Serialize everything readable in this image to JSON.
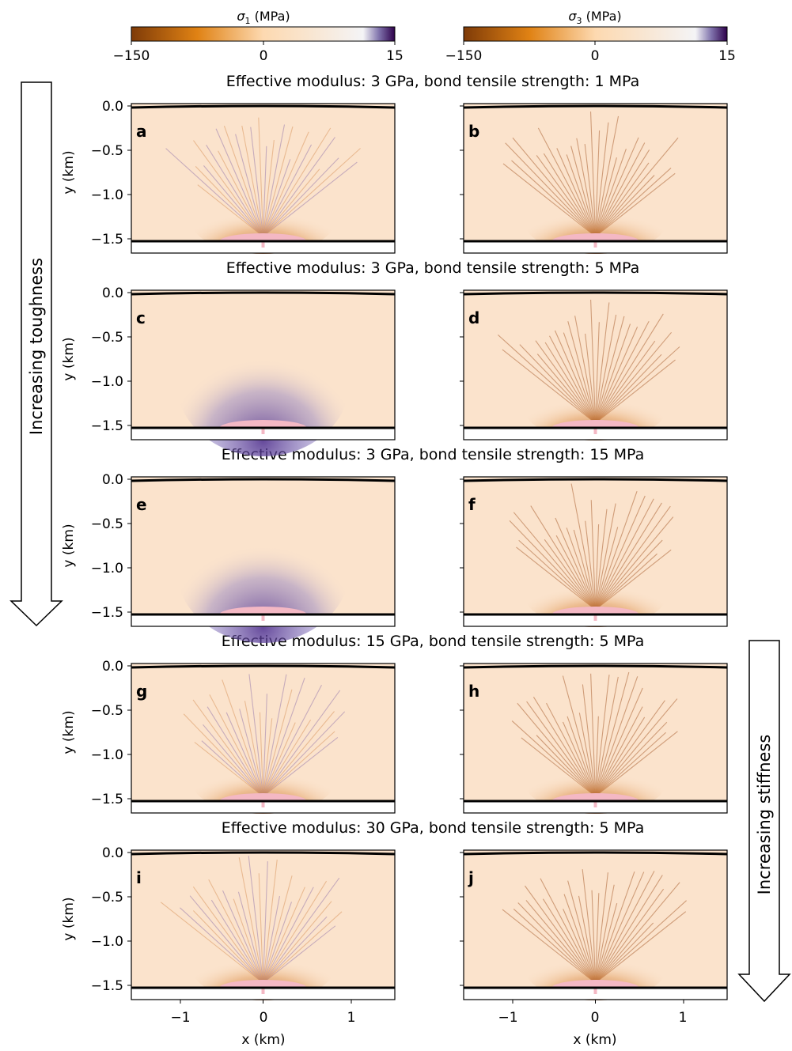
{
  "colorbars": [
    {
      "label_symbol": "σ",
      "label_sub": "1",
      "label_unit": " (MPa)",
      "ticks": [
        "−150",
        "0",
        "15"
      ]
    },
    {
      "label_symbol": "σ",
      "label_sub": "3",
      "label_unit": " (MPa)",
      "ticks": [
        "−150",
        "0",
        "15"
      ]
    }
  ],
  "colors": {
    "compressive_strong": "#7f3b08",
    "compressive_mid": "#e08214",
    "neutral": "#f7f7f7",
    "tensile_mid": "#b2abd2",
    "tensile_strong": "#2d004b",
    "panel_fill": "#fbe3cc",
    "source": "#f4b8c4"
  },
  "rows": [
    {
      "title": "Effective modulus: 3 GPa, bond tensile strength: 1 MPa",
      "left_letter": "a",
      "right_letter": "b"
    },
    {
      "title": "Effective modulus: 3 GPa, bond tensile strength: 5 MPa",
      "left_letter": "c",
      "right_letter": "d"
    },
    {
      "title": "Effective modulus: 3 GPa, bond tensile strength: 15 MPa",
      "left_letter": "e",
      "right_letter": "f"
    },
    {
      "title": "Effective modulus: 15 GPa, bond tensile strength: 5 MPa",
      "left_letter": "g",
      "right_letter": "h"
    },
    {
      "title": "Effective modulus: 30 GPa, bond tensile strength: 5 MPa",
      "left_letter": "i",
      "right_letter": "j"
    }
  ],
  "y_axis": {
    "label": "y (km)",
    "ticks": [
      "0.0",
      "−0.5",
      "−1.0",
      "−1.5"
    ]
  },
  "x_axis": {
    "label": "x (km)",
    "ticks": [
      "−1",
      "0",
      "1"
    ]
  },
  "arrows": {
    "left": "Increasing toughness",
    "right": "Increasing stiffness"
  }
}
